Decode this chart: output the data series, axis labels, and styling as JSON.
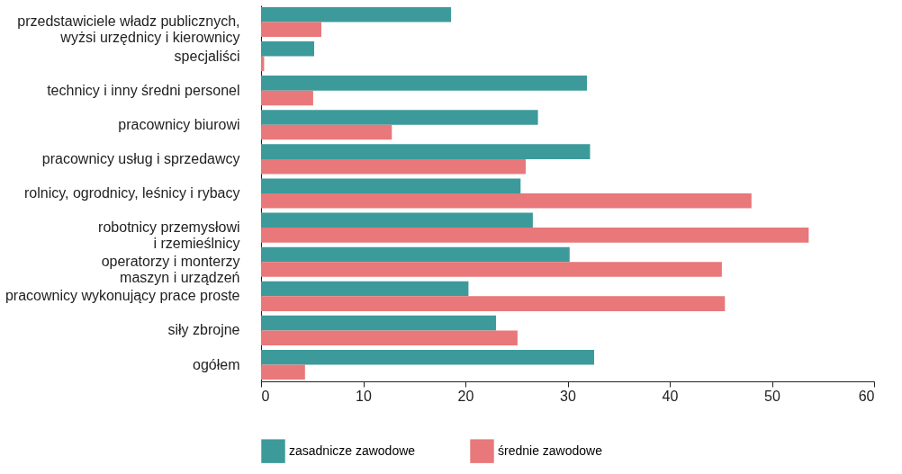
{
  "chart_data": {
    "type": "bar",
    "orientation": "horizontal",
    "categories": [
      "przedstawiciele władz publicznych,\nwyżsi urzędnicy i kierownicy",
      "specjaliści",
      "technicy i inny średni personel",
      "pracownicy biurowi",
      "pracownicy usług i sprzedawcy",
      "rolnicy, ogrodnicy, leśnicy i rybacy",
      "robotnicy przemysłowi\ni rzemieślnicy",
      "operatorzy i monterzy\nmaszyn i urządzeń",
      "pracownicy wykonujący prace proste",
      "siły zbrojne",
      "ogółem"
    ],
    "series": [
      {
        "name": "zasadnicze zawodowe",
        "color": "#3d9a9b",
        "values": [
          18.6,
          5.2,
          31.9,
          27.1,
          32.2,
          25.4,
          26.6,
          30.2,
          20.3,
          23.0,
          32.6
        ]
      },
      {
        "name": "średnie zawodowe",
        "color": "#e8787a",
        "values": [
          5.9,
          0.3,
          5.1,
          12.8,
          25.9,
          48.0,
          53.6,
          45.1,
          45.4,
          25.1,
          4.3
        ]
      }
    ],
    "xlim": [
      0,
      60
    ],
    "xticks": [
      0,
      10,
      20,
      30,
      40,
      50,
      60
    ],
    "legend": "bottom"
  }
}
